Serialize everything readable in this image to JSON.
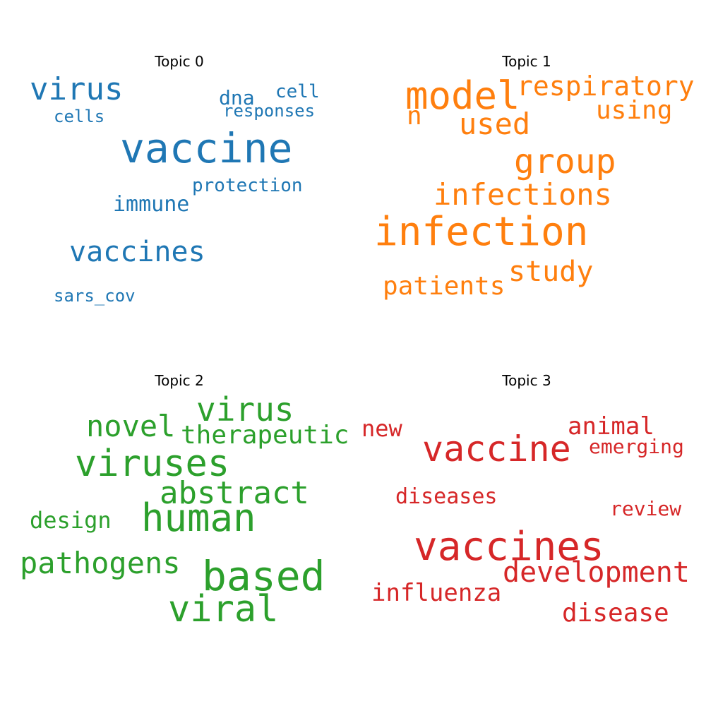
{
  "topics": [
    {
      "title": "Topic 0",
      "color": "#1f77b4",
      "words": {
        "vaccine": "vaccine",
        "virus": "virus",
        "vaccines": "vaccines",
        "dna": "dna",
        "cell": "cell",
        "responses": "responses",
        "cells": "cells",
        "protection": "protection",
        "immune": "immune",
        "sars_cov": "sars_cov"
      }
    },
    {
      "title": "Topic 1",
      "color": "#ff7f0e",
      "words": {
        "model": "model",
        "respiratory": "respiratory",
        "n": "n",
        "using": "using",
        "used": "used",
        "group": "group",
        "infections": "infections",
        "infection": "infection",
        "study": "study",
        "patients": "patients"
      }
    },
    {
      "title": "Topic 2",
      "color": "#2ca02c",
      "words": {
        "virus": "virus",
        "novel": "novel",
        "therapeutic": "therapeutic",
        "viruses": "viruses",
        "abstract": "abstract",
        "design": "design",
        "human": "human",
        "pathogens": "pathogens",
        "based": "based",
        "viral": "viral"
      }
    },
    {
      "title": "Topic 3",
      "color": "#d62728",
      "words": {
        "new": "new",
        "animal": "animal",
        "vaccine": "vaccine",
        "emerging": "emerging",
        "diseases": "diseases",
        "review": "review",
        "vaccines": "vaccines",
        "development": "development",
        "influenza": "influenza",
        "disease": "disease"
      }
    }
  ]
}
